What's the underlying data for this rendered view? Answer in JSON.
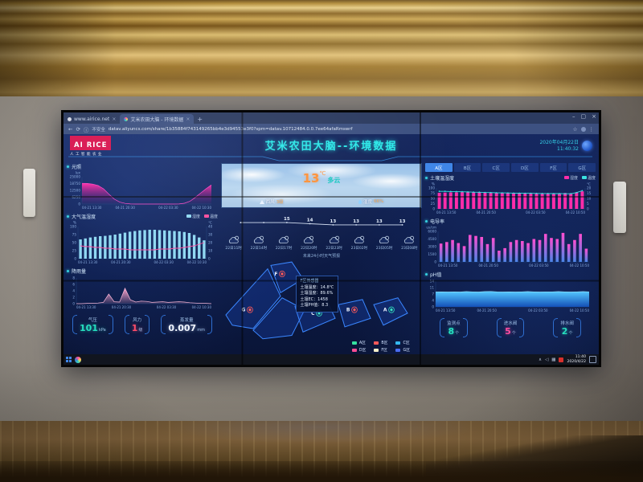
{
  "browser": {
    "tab1": "www.airice.net",
    "tab2": "艾米农田大脑 - 环境数据",
    "new_tab": "+",
    "security_label": "不安全",
    "url": "datav.aliyuncs.com/share/1b35884f743149265bb4e3d94553e3f0?spm=datav.10712484.0.0.7ee64afaRmswrf"
  },
  "header": {
    "logo_title": "AI RICE",
    "logo_subtitle": "人工智能农业",
    "title": "艾米农田大脑--环境数据",
    "date": "2020年04月22日",
    "time": "11:40:32"
  },
  "left": {
    "light_title": "光照",
    "atmos_title": "大气温湿度",
    "atmos_legend": [
      "湿度",
      "温度"
    ],
    "rain_title": "降雨量",
    "stats": [
      {
        "label": "气压",
        "value": "101",
        "unit": "kPa"
      },
      {
        "label": "风力",
        "value": "1",
        "unit": "级"
      },
      {
        "label": "蒸发量",
        "value": "0.007",
        "unit": "mm"
      }
    ]
  },
  "center": {
    "weather": {
      "temp": "13",
      "temp_unit": "℃",
      "desc": "多云",
      "wind_label": "西风",
      "wind_value": "3级",
      "humidity_label": "湿度",
      "humidity_value": "66%"
    },
    "forecast": {
      "caption": "未来24小时天气预报",
      "times": [
        "22日11时",
        "22日14时",
        "22日17时",
        "22日20时",
        "22日23时",
        "23日02时",
        "23日05时",
        "23日08时"
      ]
    },
    "map": {
      "tooltip": {
        "title": "F区传感器",
        "lines": [
          "土壤温度：14.8℃",
          "土壤湿度：89.6%",
          "土壤EC：1458",
          "土壤PH值：8.3"
        ]
      },
      "zones": [
        {
          "label": "F",
          "color": "#ff5a5a"
        },
        {
          "label": "G",
          "color": "#ff5a5a"
        },
        {
          "label": "C",
          "color": "#35e0c0"
        },
        {
          "label": "B",
          "color": "#ff5a5a"
        },
        {
          "label": "A",
          "color": "#35e0c0"
        }
      ],
      "legend": [
        {
          "label": "A区",
          "color": "#35e0a0"
        },
        {
          "label": "B区",
          "color": "#ff5a5a"
        },
        {
          "label": "C区",
          "color": "#35b8f0"
        },
        {
          "label": "D区",
          "color": "#ff4d94"
        },
        {
          "label": "F区",
          "color": "#f5eec8"
        },
        {
          "label": "G区",
          "color": "#4a6cf0"
        }
      ]
    }
  },
  "right": {
    "tabs": [
      "A区",
      "B区",
      "C区",
      "D区",
      "F区",
      "G区"
    ],
    "active_tab": 0,
    "soil_title": "土壤温湿度",
    "soil_legend": [
      "湿度",
      "温度"
    ],
    "ec_title": "电导率",
    "ph_title": "pH值",
    "stats": [
      {
        "label": "监测点",
        "value": "8",
        "unit": "个"
      },
      {
        "label": "进水阀",
        "value": "5",
        "unit": "个"
      },
      {
        "label": "排水阀",
        "value": "2",
        "unit": "个"
      }
    ]
  },
  "taskbar": {
    "time": "11:40",
    "date": "2020/4/22"
  },
  "colors": {
    "accent_cyan": "#2ce8e8",
    "accent_magenta": "#ff2daa",
    "logo_red": "#d81650"
  },
  "chart_data": [
    {
      "id": "light",
      "type": "area",
      "title": "光照",
      "ylabel": "lux",
      "ymax": 25000,
      "yticks": [
        0,
        6250,
        12500,
        18750,
        25000
      ],
      "padL": 19,
      "padR": 8,
      "padT": 8,
      "xlabels": [
        "04-21 13:30",
        "04-21 20:30",
        "04-22 03:30",
        "04-22 10:30"
      ],
      "series": [
        {
          "type": "area",
          "color": "#ff49c8",
          "gradient": [
            "#ff2da8",
            "rgba(120,20,130,0.06)"
          ],
          "values": [
            19000,
            18800,
            18200,
            17000,
            14000,
            9000,
            4500,
            1800,
            600,
            100,
            0,
            0,
            0,
            0,
            0,
            0,
            0,
            0,
            100,
            700,
            2500,
            6000,
            10000,
            14000,
            17500
          ]
        }
      ]
    },
    {
      "id": "atmos",
      "type": "mixed",
      "title": "大气温湿度",
      "ylabel": "%",
      "ylabel2": "℃",
      "ymax": 100,
      "yticks": [
        0,
        25,
        50,
        75,
        100
      ],
      "ymax2": 40,
      "yticks2": [
        0,
        10,
        20,
        30,
        40
      ],
      "padL": 14,
      "padR": 14,
      "padT": 8,
      "xlabels": [
        "04-21 13:30",
        "04-21 20:30",
        "04-22 03:30",
        "04-22 10:30"
      ],
      "series": [
        {
          "type": "bar",
          "name": "湿度",
          "color": "#8fd8f2",
          "values": [
            60,
            63,
            66,
            68,
            70,
            71,
            73,
            75,
            78,
            81,
            84,
            86,
            88,
            89,
            90,
            90,
            89,
            88,
            87,
            86,
            85,
            83,
            80,
            74,
            66,
            57
          ]
        },
        {
          "type": "line",
          "name": "温度",
          "axis": "right",
          "color": "#ff4d9e",
          "centered": true,
          "values": [
            16,
            15,
            15,
            14,
            14,
            13,
            13,
            12,
            12,
            12,
            11,
            11,
            11,
            11,
            11,
            11,
            12,
            12,
            12,
            13,
            13,
            14,
            15,
            16,
            18,
            20
          ]
        }
      ]
    },
    {
      "id": "rain",
      "type": "area",
      "title": "降雨量",
      "ymax": 8,
      "yticks": [
        0,
        2,
        4,
        6,
        8
      ],
      "padL": 12,
      "padR": 8,
      "padT": 4,
      "xlabels": [
        "04-21 13:30",
        "04-21 20:30",
        "04-22 03:30",
        "04-22 10:30"
      ],
      "series": [
        {
          "type": "area",
          "color": "#f9b8d8",
          "gradient": [
            "#f9a0c8",
            "rgba(249,160,200,0.12)"
          ],
          "values": [
            0,
            0,
            0.1,
            0.1,
            0.2,
            0.4,
            3.0,
            0.6,
            0.5,
            4.8,
            1.2,
            0.5,
            0.8,
            0.7,
            0.4,
            0.5,
            0.6,
            0.4,
            0.5,
            0.6,
            0.5,
            0.3,
            0.2,
            0.1,
            0.1,
            0
          ]
        }
      ]
    },
    {
      "id": "ctemp",
      "type": "line",
      "noAxis": true,
      "ymax": 20,
      "ymin": 8,
      "padL": 10,
      "padR": 10,
      "padT": 9,
      "series": [
        {
          "type": "line",
          "color": "#d0dcf0",
          "dots": true,
          "centered": true,
          "labelColor": "#e8f2ff",
          "values": [
            15,
            15,
            15,
            14,
            13,
            13,
            13,
            13
          ],
          "labels": [
            "",
            "",
            "15",
            "14",
            "13",
            "13",
            "13",
            "13"
          ]
        }
      ]
    },
    {
      "id": "soil",
      "type": "mixed",
      "title": "土壤温湿度",
      "ylabel": "%",
      "ylabel2": "℃",
      "ymax": 100,
      "yticks": [
        0,
        25,
        50,
        75,
        100
      ],
      "ymax2": 20,
      "yticks2": [
        0,
        5,
        10,
        15,
        20
      ],
      "padL": 14,
      "padR": 13,
      "padT": 8,
      "xlabels": [
        "04-21 13:50",
        "04-21 20:50",
        "04-22 03:50",
        "04-22 10:50"
      ],
      "series": [
        {
          "type": "bar",
          "name": "湿度",
          "color": "#ff2daa",
          "values": [
            77,
            78,
            79,
            79,
            80,
            80,
            79,
            79,
            78,
            78,
            77,
            77,
            76,
            76,
            76,
            75,
            75,
            75,
            74,
            74,
            75,
            75,
            76,
            74,
            79,
            84
          ]
        },
        {
          "type": "line",
          "name": "温度",
          "axis": "right",
          "color": "#3ae0e0",
          "centered": true,
          "dots": true,
          "values": [
            16.8,
            16.8,
            16.6,
            16.5,
            16.4,
            16.2,
            16.0,
            15.9,
            15.7,
            15.6,
            15.4,
            15.3,
            15.2,
            15.1,
            15.0,
            14.9,
            14.9,
            14.8,
            14.7,
            14.7,
            14.6,
            14.6,
            14.5,
            14.5,
            15.6,
            17.4
          ]
        }
      ]
    },
    {
      "id": "ec",
      "type": "mixed",
      "title": "电导率",
      "ylabel": "us/cm",
      "ymax": 6000,
      "yticks": [
        0,
        1500,
        3000,
        4500,
        6000
      ],
      "padL": 16,
      "padR": 8,
      "padT": 8,
      "xlabels": [
        "04-21 13:50",
        "04-21 20:50",
        "04-22 03:50",
        "04-22 10:50"
      ],
      "series": [
        {
          "type": "bar",
          "gradient": [
            "#ff4dd0",
            "#4a86e8"
          ],
          "barw": 0.5,
          "values": [
            3600,
            3900,
            4300,
            3700,
            3100,
            5300,
            5100,
            4900,
            3500,
            4700,
            2200,
            2700,
            3900,
            4300,
            4100,
            3700,
            4500,
            4300,
            5500,
            4700,
            4500,
            5700,
            3500,
            4300,
            5500,
            2600
          ]
        }
      ]
    },
    {
      "id": "ph",
      "type": "area",
      "title": "pH值",
      "ymax": 14,
      "yticks": [
        0,
        3.5,
        7,
        10.5,
        14
      ],
      "ytickLabels": [
        "0",
        "4",
        "7",
        "11",
        "14"
      ],
      "padL": 13,
      "padR": 8,
      "padT": 4,
      "xlabels": [
        "04-21 13:50",
        "04-21 20:50",
        "04-22 03:50",
        "04-22 10:50"
      ],
      "series": [
        {
          "type": "area",
          "color": "#8fe0ff",
          "gradient": [
            "#54c8ff",
            "#1450b8"
          ],
          "values": [
            8.1,
            8.2,
            8.1,
            8.2,
            8.1,
            8.3,
            8.2,
            8.1,
            8.3,
            8.4,
            8.2,
            8.1,
            8.2,
            8.1,
            8.2,
            8.3,
            8.2,
            8.1,
            8.2,
            8.2,
            8.3,
            8.2,
            8.1,
            8.2,
            8.3,
            8.2
          ]
        }
      ]
    }
  ]
}
